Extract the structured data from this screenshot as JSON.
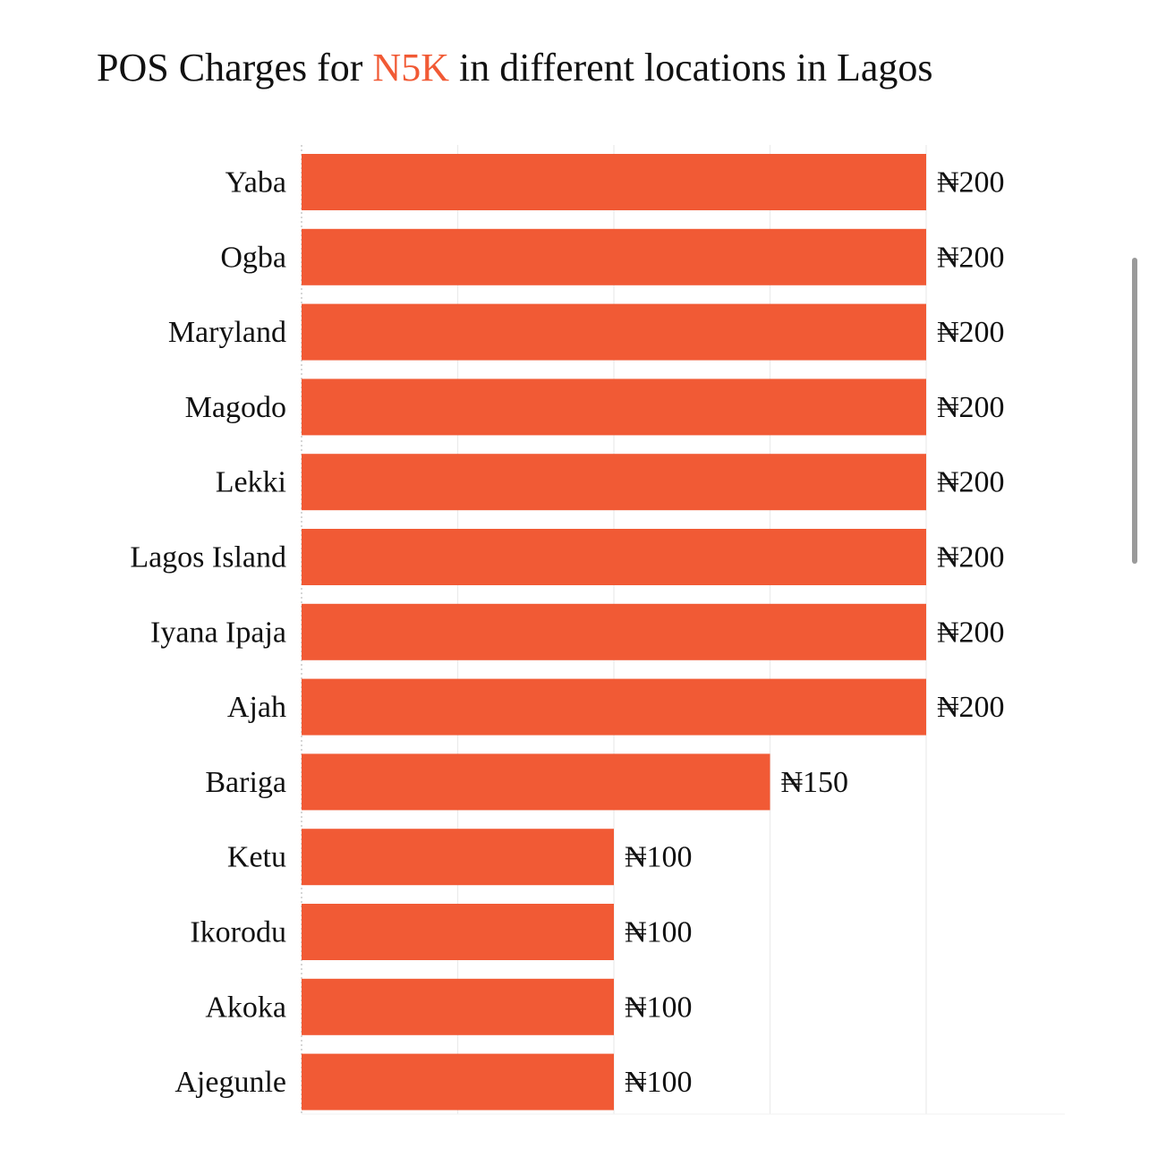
{
  "chart_data": {
    "type": "bar",
    "orientation": "horizontal",
    "title": {
      "before": "POS Charges for ",
      "highlight": "N5K",
      "after": " in different locations in Lagos"
    },
    "categories": [
      "Yaba",
      "Ogba",
      "Maryland",
      "Magodo",
      "Lekki",
      "Lagos Island",
      "Iyana Ipaja",
      "Ajah",
      "Bariga",
      "Ketu",
      "Ikorodu",
      "Akoka",
      "Ajegunle"
    ],
    "values": [
      200,
      200,
      200,
      200,
      200,
      200,
      200,
      200,
      150,
      100,
      100,
      100,
      100
    ],
    "value_labels": [
      "₦200",
      "₦200",
      "₦200",
      "₦200",
      "₦200",
      "₦200",
      "₦200",
      "₦200",
      "₦150",
      "₦100",
      "₦100",
      "₦100",
      "₦100"
    ],
    "xlabel": "",
    "ylabel": "",
    "xlim": [
      0,
      200
    ],
    "gridlines": [
      0,
      50,
      100,
      150,
      200
    ],
    "grid": true,
    "bar_color": "#f15a35",
    "highlight_color": "#f15a35"
  }
}
